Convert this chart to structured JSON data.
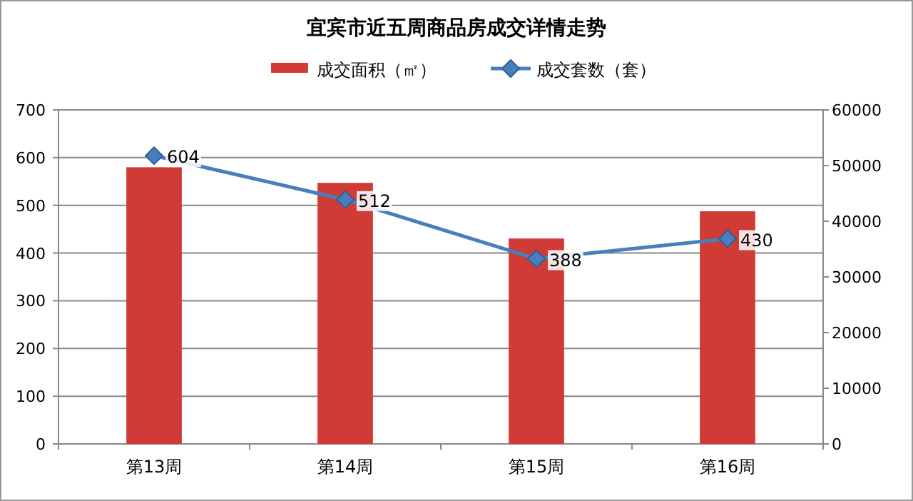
{
  "chart_data": {
    "type": "bar",
    "title": "宜宾市近五周商品房成交详情走势",
    "categories": [
      "第13周",
      "第14周",
      "第15周",
      "第16周"
    ],
    "series": [
      {
        "name": "成交面积（㎡）",
        "axis": "y2",
        "color": "#d03b36",
        "values": [
          49700,
          46900,
          36900,
          41800
        ]
      },
      {
        "name": "成交套数（套）",
        "type": "line",
        "axis": "y",
        "color": "#4a7ebb",
        "marker": "diamond",
        "data_labels": true,
        "values": [
          604,
          512,
          388,
          430
        ]
      }
    ],
    "ylim": [
      0,
      700
    ],
    "yticks": [
      0,
      100,
      200,
      300,
      400,
      500,
      600,
      700
    ],
    "y2lim": [
      0,
      60000
    ],
    "y2ticks": [
      0,
      10000,
      20000,
      30000,
      40000,
      50000,
      60000
    ],
    "grid": "y",
    "legend": "top"
  }
}
